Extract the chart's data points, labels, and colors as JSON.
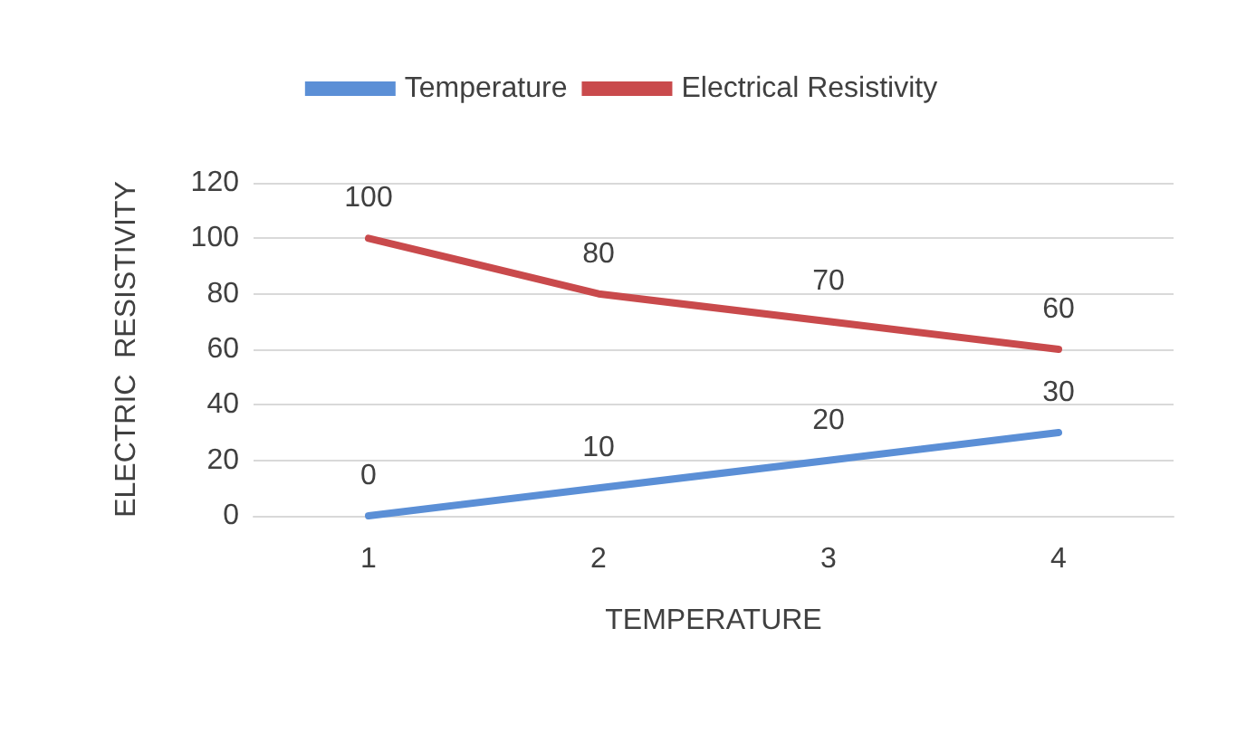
{
  "chart_data": {
    "type": "line",
    "xlabel": "TEMPERATURE",
    "ylabel": "ELECTRIC  RESISTIVITY",
    "categories": [
      "1",
      "2",
      "3",
      "4"
    ],
    "series": [
      {
        "name": "Temperature",
        "color": "#5b8fd6",
        "values": [
          0,
          10,
          20,
          30
        ]
      },
      {
        "name": "Electrical Resistivity",
        "color": "#c94a4c",
        "values": [
          100,
          80,
          70,
          60
        ]
      }
    ],
    "ylim": [
      0,
      120
    ],
    "yticks": [
      0,
      20,
      40,
      60,
      80,
      100,
      120
    ],
    "grid": "y",
    "legend": "top",
    "data_labels": true,
    "marker": "none",
    "line_style": "solid"
  }
}
